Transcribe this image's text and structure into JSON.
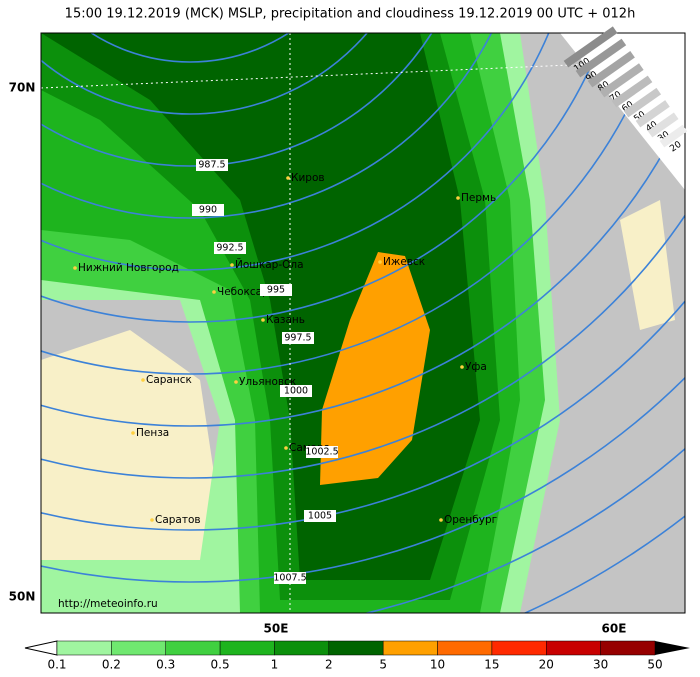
{
  "title": "15:00 19.12.2019 (MCK) MSLP, precipitation and cloudiness 19.12.2019 00 UTC + 012h",
  "map": {
    "lat_labels": [
      "70N",
      "50N"
    ],
    "lon_labels": [
      "50E",
      "60E"
    ],
    "cities": [
      "Киров",
      "Пермь",
      "Ижевск",
      "Йошкар-Ола",
      "Нижний Новгород",
      "Чебоксары",
      "Казань",
      "Уфа",
      "Саранск",
      "Ульяновск",
      "Пенза",
      "Самара",
      "Саратов",
      "Оренбург"
    ],
    "isobars": [
      "987.5",
      "990",
      "992.5",
      "995",
      "997.5",
      "1000",
      "1002.5",
      "1005",
      "1007.5"
    ],
    "url": "http://meteoinfo.ru"
  },
  "cloud_scale": [
    "100",
    "90",
    "80",
    "70",
    "60",
    "50",
    "40",
    "30",
    "20"
  ],
  "precip_scale": {
    "labels": [
      "0.1",
      "0.2",
      "0.3",
      "0.5",
      "1",
      "2",
      "5",
      "10",
      "15",
      "20",
      "30",
      "50"
    ],
    "colors": [
      "#a0f5a0",
      "#70e870",
      "#40d040",
      "#1eb41e",
      "#0c900c",
      "#006400",
      "#ffa000",
      "#ff6a00",
      "#ff2a00",
      "#c80000",
      "#960000"
    ]
  }
}
